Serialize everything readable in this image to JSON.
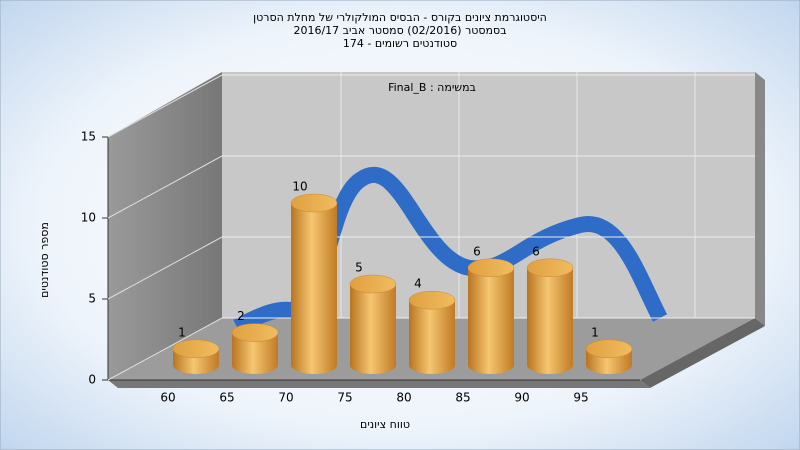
{
  "chart_data": {
    "type": "bar",
    "title": "היסטוגרמת ציונים בקורס - הבסיס המולקולרי של מחלת הסרטן",
    "subtitle": "בסמסטר  (02/2016)  סמסטר אביב 2016/17",
    "subtitle2": "סטודנטים רשומים - 174",
    "annotation": "Final_B : במשימה",
    "x_label": "טווח ציונים",
    "y_label": "מספר סטודנטים",
    "categories": [
      "60",
      "65",
      "70",
      "75",
      "80",
      "85",
      "90",
      "95"
    ],
    "values": [
      1,
      2,
      10,
      5,
      4,
      6,
      6,
      1
    ],
    "color": "#e0a040",
    "ylim": [
      0,
      15
    ],
    "yticks": [
      0,
      5,
      10,
      15
    ],
    "grid": true
  }
}
